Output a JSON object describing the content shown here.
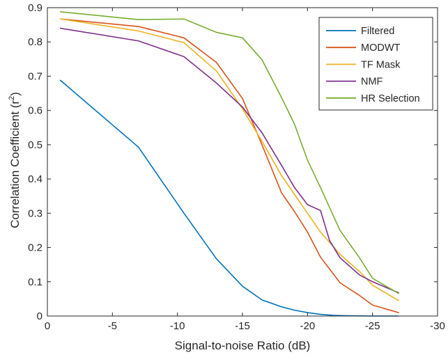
{
  "chart_data": {
    "type": "line",
    "title": "",
    "xlabel": "Signal-to-noise Ratio (dB)",
    "ylabel_main": "Correlation Coefficient (r",
    "ylabel_sup": "2",
    "ylabel_close": ")",
    "xlim": [
      0,
      -30
    ],
    "ylim": [
      0,
      0.9
    ],
    "xticks": [
      0,
      -5,
      -10,
      -15,
      -20,
      -25,
      -30
    ],
    "xtick_labels": [
      "0",
      "-5",
      "-10",
      "-15",
      "-20",
      "-25",
      "-30"
    ],
    "yticks": [
      0,
      0.1,
      0.2,
      0.3,
      0.4,
      0.5,
      0.6,
      0.7,
      0.8,
      0.9
    ],
    "ytick_labels": [
      "0",
      "0.1",
      "0.2",
      "0.3",
      "0.4",
      "0.5",
      "0.6",
      "0.7",
      "0.8",
      "0.9"
    ],
    "grid": false,
    "legend_position": "top-right",
    "series": [
      {
        "name": "Filtered",
        "color": "#0072BD",
        "points": [
          [
            -1,
            0.688
          ],
          [
            -7,
            0.493
          ],
          [
            -10.5,
            0.3
          ],
          [
            -13,
            0.167
          ],
          [
            -15,
            0.087
          ],
          [
            -16.5,
            0.047
          ],
          [
            -18,
            0.027
          ],
          [
            -19,
            0.017
          ],
          [
            -20,
            0.01
          ],
          [
            -21,
            0.005
          ],
          [
            -22,
            0.002
          ],
          [
            -23,
            0.001
          ],
          [
            -25,
            0.0
          ],
          [
            -27,
            0.0
          ]
        ]
      },
      {
        "name": "MODWT",
        "color": "#D95319",
        "points": [
          [
            -1,
            0.867
          ],
          [
            -7,
            0.845
          ],
          [
            -10.5,
            0.812
          ],
          [
            -13,
            0.74
          ],
          [
            -15,
            0.635
          ],
          [
            -16.5,
            0.5
          ],
          [
            -18,
            0.36
          ],
          [
            -19,
            0.305
          ],
          [
            -20,
            0.245
          ],
          [
            -21,
            0.172
          ],
          [
            -22.5,
            0.097
          ],
          [
            -24,
            0.06
          ],
          [
            -25,
            0.032
          ],
          [
            -27,
            0.01
          ]
        ]
      },
      {
        "name": "TF Mask",
        "color": "#EDB120",
        "points": [
          [
            -1,
            0.867
          ],
          [
            -7,
            0.832
          ],
          [
            -10.5,
            0.798
          ],
          [
            -13,
            0.715
          ],
          [
            -15,
            0.605
          ],
          [
            -16.5,
            0.51
          ],
          [
            -18,
            0.41
          ],
          [
            -19,
            0.355
          ],
          [
            -20,
            0.3
          ],
          [
            -21,
            0.245
          ],
          [
            -22.5,
            0.18
          ],
          [
            -24,
            0.13
          ],
          [
            -25,
            0.09
          ],
          [
            -27,
            0.045
          ]
        ]
      },
      {
        "name": "NMF",
        "color": "#7E2F8E",
        "points": [
          [
            -1,
            0.84
          ],
          [
            -7,
            0.803
          ],
          [
            -10.5,
            0.757
          ],
          [
            -13,
            0.68
          ],
          [
            -15,
            0.61
          ],
          [
            -16.5,
            0.535
          ],
          [
            -18,
            0.44
          ],
          [
            -19,
            0.375
          ],
          [
            -20,
            0.325
          ],
          [
            -21,
            0.308
          ],
          [
            -21.7,
            0.22
          ],
          [
            -22.5,
            0.17
          ],
          [
            -24,
            0.12
          ],
          [
            -25,
            0.1
          ],
          [
            -27,
            0.068
          ]
        ]
      },
      {
        "name": "HR Selection",
        "color": "#77AC30",
        "points": [
          [
            -1,
            0.888
          ],
          [
            -7,
            0.865
          ],
          [
            -10.5,
            0.867
          ],
          [
            -13,
            0.828
          ],
          [
            -15,
            0.812
          ],
          [
            -16.5,
            0.748
          ],
          [
            -18,
            0.638
          ],
          [
            -19,
            0.56
          ],
          [
            -20,
            0.455
          ],
          [
            -21,
            0.375
          ],
          [
            -22.5,
            0.25
          ],
          [
            -24,
            0.17
          ],
          [
            -25,
            0.11
          ],
          [
            -27,
            0.066
          ]
        ]
      }
    ]
  }
}
